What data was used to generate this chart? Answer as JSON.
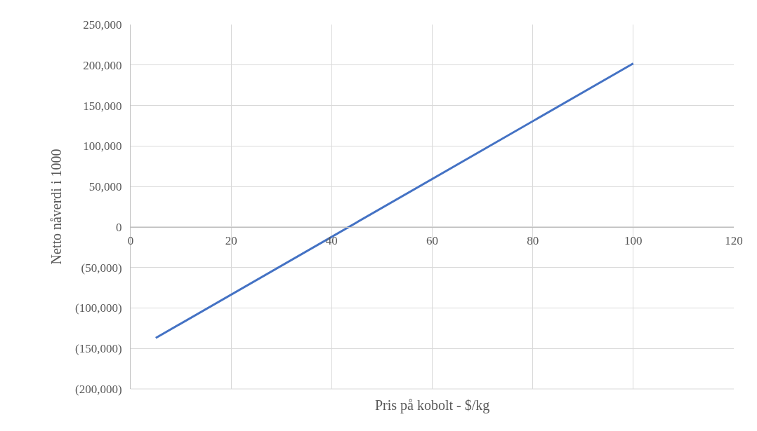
{
  "chart_data": {
    "type": "line",
    "xlabel": "Pris på kobolt - $/kg",
    "ylabel": "Netto nåverdi i 1000",
    "x": [
      5,
      100
    ],
    "series": [
      {
        "color": "#4472c4",
        "values": [
          -137000,
          202000
        ]
      }
    ],
    "xlim": [
      0,
      120
    ],
    "xticks": [
      0,
      20,
      40,
      60,
      80,
      100,
      120
    ],
    "ylim": [
      -200000,
      250000
    ],
    "yticks": [
      {
        "value": -200000,
        "label": "(200,000)"
      },
      {
        "value": -150000,
        "label": "(150,000)"
      },
      {
        "value": -100000,
        "label": "(100,000)"
      },
      {
        "value": -50000,
        "label": "(50,000)"
      },
      0,
      {
        "value": 50000,
        "label": "50,000"
      },
      {
        "value": 100000,
        "label": "100,000"
      },
      {
        "value": 150000,
        "label": "150,000"
      },
      {
        "value": 200000,
        "label": "200,000"
      },
      {
        "value": 250000,
        "label": "250,000"
      }
    ],
    "grid": true,
    "marker": "none",
    "line_style": "solid"
  }
}
